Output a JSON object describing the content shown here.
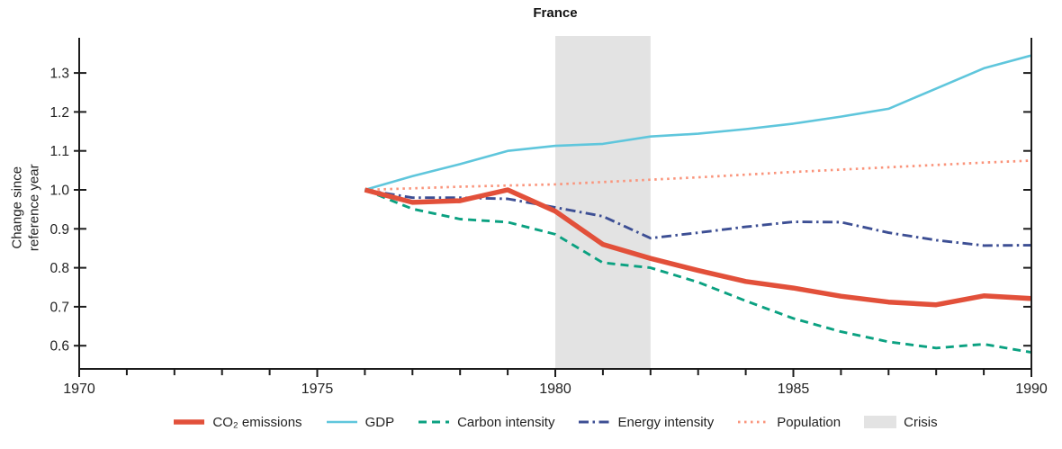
{
  "chart_data": {
    "type": "line",
    "title": "France",
    "ylabel": "Change since reference year",
    "ylabel_line1": "Change since",
    "ylabel_line2": "reference year",
    "xlabel": "",
    "xlim": [
      1970,
      1990
    ],
    "ylim": [
      0.54,
      1.39
    ],
    "x_ticks_labeled": [
      1970,
      1975,
      1980,
      1985,
      1990
    ],
    "x_ticks_minor_every": 1,
    "y_ticks": [
      0.6,
      0.7,
      0.8,
      0.9,
      1.0,
      1.1,
      1.2,
      1.3
    ],
    "grid": false,
    "legend_position": "bottom",
    "x": [
      1976,
      1977,
      1978,
      1979,
      1980,
      1981,
      1982,
      1983,
      1984,
      1985,
      1986,
      1987,
      1988,
      1989,
      1990
    ],
    "series": [
      {
        "id": "co2-emissions",
        "name": "CO₂ emissions",
        "color": "#e2503a",
        "style": "solid-thick",
        "values": [
          1.0,
          0.968,
          0.972,
          1.0,
          0.945,
          0.86,
          0.824,
          0.793,
          0.765,
          0.748,
          0.727,
          0.712,
          0.705,
          0.728,
          0.721
        ]
      },
      {
        "id": "gdp",
        "name": "GDP",
        "color": "#5fc6dc",
        "style": "solid",
        "values": [
          1.0,
          1.035,
          1.066,
          1.1,
          1.113,
          1.118,
          1.137,
          1.144,
          1.156,
          1.17,
          1.188,
          1.208,
          1.26,
          1.312,
          1.345
        ]
      },
      {
        "id": "carbon-intensity",
        "name": "Carbon intensity",
        "color": "#0ba181",
        "style": "dashed",
        "values": [
          1.0,
          0.951,
          0.925,
          0.917,
          0.886,
          0.813,
          0.8,
          0.763,
          0.715,
          0.67,
          0.636,
          0.61,
          0.594,
          0.604,
          0.583
        ]
      },
      {
        "id": "energy-intensity",
        "name": "Energy intensity",
        "color": "#3d4f94",
        "style": "dashdot",
        "values": [
          1.0,
          0.98,
          0.98,
          0.977,
          0.955,
          0.932,
          0.876,
          0.89,
          0.905,
          0.918,
          0.917,
          0.89,
          0.871,
          0.857,
          0.858
        ]
      },
      {
        "id": "population",
        "name": "Population",
        "color": "#fa947b",
        "style": "dotted",
        "values": [
          1.0,
          1.004,
          1.008,
          1.011,
          1.014,
          1.02,
          1.026,
          1.032,
          1.039,
          1.046,
          1.052,
          1.058,
          1.064,
          1.07,
          1.075
        ]
      }
    ],
    "crisis_band": {
      "id": "crisis",
      "label": "Crisis",
      "x_start": 1980,
      "x_end": 1982,
      "color": "#e3e3e3"
    },
    "axis_color": "#1c1c1c"
  }
}
